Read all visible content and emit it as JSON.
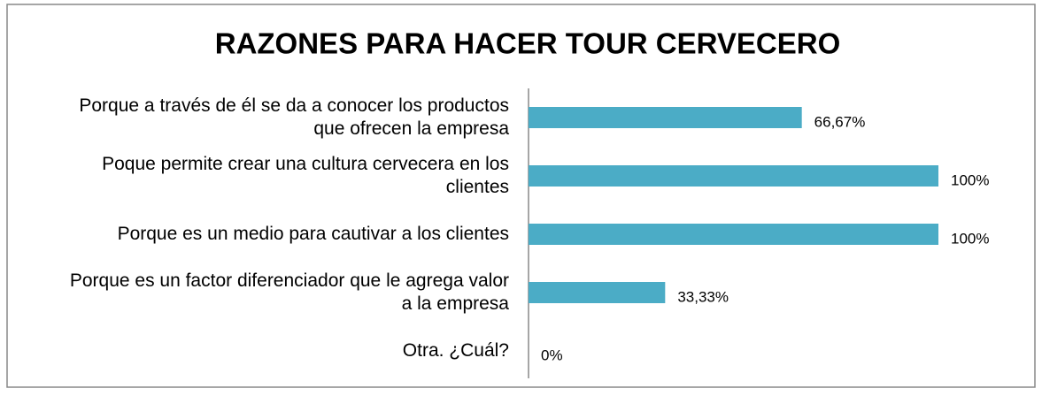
{
  "chart_data": {
    "type": "bar",
    "orientation": "horizontal",
    "title": "RAZONES PARA HACER TOUR CERVECERO",
    "categories": [
      "Porque a través de él se da a conocer los productos que ofrecen la empresa",
      "Poque permite crear una cultura cervecera en los clientes",
      "Porque es un medio para cautivar a los clientes",
      "Porque es un factor diferenciador que le agrega valor a la empresa",
      "Otra. ¿Cuál?"
    ],
    "values": [
      66.67,
      100,
      100,
      33.33,
      0
    ],
    "value_labels": [
      "66,67%",
      "100%",
      "100%",
      "33,33%",
      "0%"
    ],
    "color": "#4bacc6",
    "xlim": [
      0,
      100
    ]
  }
}
